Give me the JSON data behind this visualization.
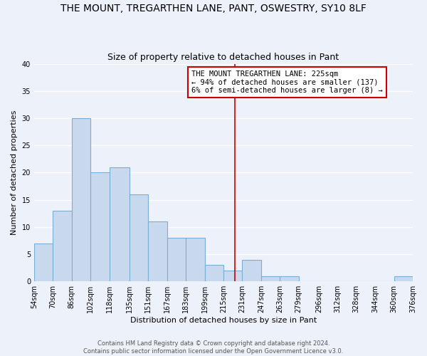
{
  "title": "THE MOUNT, TREGARTHEN LANE, PANT, OSWESTRY, SY10 8LF",
  "subtitle": "Size of property relative to detached houses in Pant",
  "xlabel": "Distribution of detached houses by size in Pant",
  "ylabel": "Number of detached properties",
  "bin_edges": [
    54,
    70,
    86,
    102,
    118,
    135,
    151,
    167,
    183,
    199,
    215,
    231,
    247,
    263,
    279,
    296,
    312,
    328,
    344,
    360,
    376
  ],
  "bar_heights": [
    7,
    13,
    30,
    20,
    21,
    16,
    11,
    8,
    8,
    3,
    2,
    4,
    1,
    1,
    0,
    0,
    0,
    0,
    0,
    1
  ],
  "bar_color": "#c8d9ee",
  "bar_edge_color": "#7aaed4",
  "vline_x": 225,
  "vline_color": "#cc0000",
  "annotation_text": "THE MOUNT TREGARTHEN LANE: 225sqm\n← 94% of detached houses are smaller (137)\n6% of semi-detached houses are larger (8) →",
  "annotation_box_color": "white",
  "annotation_border_color": "#cc0000",
  "ylim": [
    0,
    40
  ],
  "yticks": [
    0,
    5,
    10,
    15,
    20,
    25,
    30,
    35,
    40
  ],
  "tick_labels": [
    "54sqm",
    "70sqm",
    "86sqm",
    "102sqm",
    "118sqm",
    "135sqm",
    "151sqm",
    "167sqm",
    "183sqm",
    "199sqm",
    "215sqm",
    "231sqm",
    "247sqm",
    "263sqm",
    "279sqm",
    "296sqm",
    "312sqm",
    "328sqm",
    "344sqm",
    "360sqm",
    "376sqm"
  ],
  "footer_text": "Contains HM Land Registry data © Crown copyright and database right 2024.\nContains public sector information licensed under the Open Government Licence v3.0.",
  "bg_color": "#edf1f9",
  "grid_color": "#ffffff",
  "title_fontsize": 10,
  "subtitle_fontsize": 9,
  "axis_label_fontsize": 8,
  "tick_fontsize": 7,
  "annotation_fontsize": 7.5,
  "footer_fontsize": 6
}
